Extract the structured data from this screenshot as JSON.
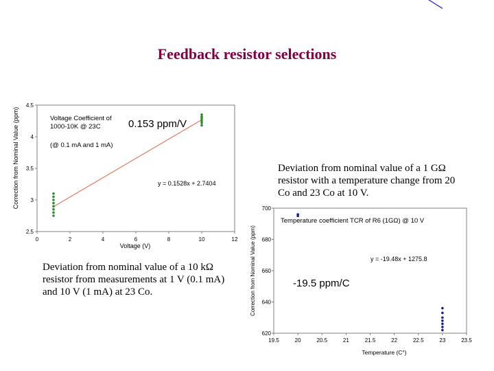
{
  "slide": {
    "title": "Feedback resistor selections",
    "caption_left": "Deviation from nominal value of a 10 kΩ resistor from measurements at 1 V (0.1 mA) and 10 V (1 mA) at 23 Co.",
    "caption_right": "Deviation from nominal value of a 1 GΩ resistor with a temperature change from 20 Co and 23 Co at 10 V."
  },
  "chart_data": [
    {
      "type": "scatter",
      "title": "",
      "xlabel": "Voltage (V)",
      "ylabel": "Correction from Nominal Value (ppm)",
      "xlim": [
        0,
        12
      ],
      "ylim": [
        2.5,
        4.5
      ],
      "xticks": [
        0,
        2,
        4,
        6,
        8,
        10,
        12
      ],
      "yticks": [
        2.5,
        3,
        3.5,
        4,
        4.5
      ],
      "xtick_labels": [
        "0",
        "2",
        "4",
        "6",
        "8",
        "10",
        "12"
      ],
      "ytick_labels": [
        "2.5",
        "3",
        "3.5",
        "4",
        "4.5"
      ],
      "colors": {
        "points": "#2e8b2e",
        "trend": "#e2856a"
      },
      "series": [
        {
          "points": [
            [
              1,
              3.1
            ],
            [
              1,
              3.05
            ],
            [
              1,
              3.0
            ],
            [
              1,
              2.95
            ],
            [
              1,
              2.9
            ],
            [
              1,
              2.85
            ],
            [
              1,
              2.8
            ],
            [
              1,
              2.75
            ],
            [
              10,
              4.35
            ],
            [
              10,
              4.32
            ],
            [
              10,
              4.3
            ],
            [
              10,
              4.28
            ],
            [
              10,
              4.25
            ],
            [
              10,
              4.22
            ],
            [
              10,
              4.18
            ]
          ]
        }
      ],
      "trendline": {
        "slope": 0.1528,
        "intercept": 2.7404,
        "x_range": [
          1,
          10
        ],
        "equation": "y = 0.1528x + 2.7404"
      },
      "annotations": {
        "box_label": "Voltage Coefficient of 1000-10K @ 23C",
        "coefficient": "0.153 ppm/V",
        "condition": "(@ 0.1 mA and 1 mA)"
      }
    },
    {
      "type": "scatter",
      "title": "",
      "xlabel": "Temperature (C°)",
      "ylabel": "Correction from Nominal Value (ppm)",
      "xlim": [
        19.5,
        23.5
      ],
      "ylim": [
        620,
        700
      ],
      "xticks": [
        19.5,
        20,
        20.5,
        21,
        21.5,
        22,
        22.5,
        23,
        23.5
      ],
      "yticks": [
        620,
        640,
        660,
        680,
        700
      ],
      "xtick_labels": [
        "19.5",
        "20",
        "20.5",
        "21",
        "21.5",
        "22",
        "22.5",
        "23",
        "23.5"
      ],
      "ytick_labels": [
        "620",
        "640",
        "660",
        "680",
        "700"
      ],
      "colors": {
        "points": "#1a1a9c",
        "trend": "#2b2bc0"
      },
      "series": [
        {
          "points": [
            [
              20,
              696
            ],
            [
              20,
              695
            ],
            [
              23,
              636
            ],
            [
              23,
              633
            ],
            [
              23,
              630
            ],
            [
              23,
              628
            ],
            [
              23,
              626
            ],
            [
              23,
              624
            ],
            [
              23,
              622
            ]
          ]
        }
      ],
      "trendline": {
        "slope": -19.48,
        "intercept": 1275.8,
        "x_range": [
          20,
          23
        ],
        "equation": "y = -19.48x + 1275.8"
      },
      "annotations": {
        "box_label": "Temperature coefficient  TCR of R6 (1GΩ) @ 10 V",
        "coefficient": "-19.5 ppm/C"
      }
    }
  ]
}
